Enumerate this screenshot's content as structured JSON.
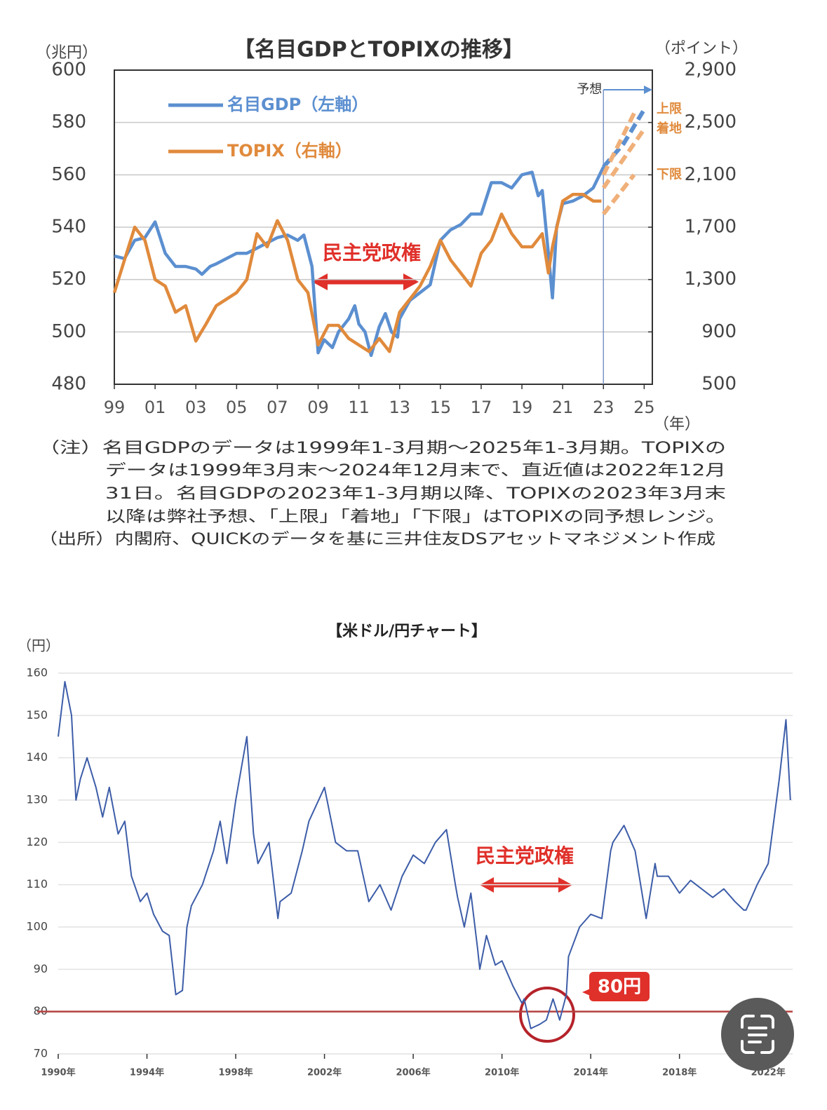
{
  "chart_data": [
    {
      "type": "line",
      "title": "【名目GDPとTOPIXの推移】",
      "y_unit": "（兆円）",
      "y2_unit": "（ポイント）",
      "x_unit": "（年）",
      "xlim": [
        1999,
        2025.4
      ],
      "xticks": [
        {
          "value": 1999,
          "label": "99"
        },
        {
          "value": 2001,
          "label": "01"
        },
        {
          "value": 2003,
          "label": "03"
        },
        {
          "value": 2005,
          "label": "05"
        },
        {
          "value": 2007,
          "label": "07"
        },
        {
          "value": 2009,
          "label": "09"
        },
        {
          "value": 2011,
          "label": "11"
        },
        {
          "value": 2013,
          "label": "13"
        },
        {
          "value": 2015,
          "label": "15"
        },
        {
          "value": 2017,
          "label": "17"
        },
        {
          "value": 2019,
          "label": "19"
        },
        {
          "value": 2021,
          "label": "21"
        },
        {
          "value": 2023,
          "label": "23"
        },
        {
          "value": 2025,
          "label": "25"
        }
      ],
      "ylim": [
        480,
        600
      ],
      "yticks": [
        480,
        500,
        520,
        540,
        560,
        580,
        600
      ],
      "y2lim": [
        500,
        2900
      ],
      "y2ticks": [
        500,
        900,
        {
          "value": 1300,
          "label": "1,300"
        },
        {
          "value": 1700,
          "label": "1,700"
        },
        {
          "value": 2100,
          "label": "2,100"
        },
        {
          "value": 2500,
          "label": "2,500"
        },
        {
          "value": 2900,
          "label": "2,900"
        }
      ],
      "grid": true,
      "series": [
        {
          "name": "名目GDP（左軸）",
          "color": "#5b8fd0",
          "axis": "y",
          "x": [
            1999,
            1999.5,
            2000,
            2000.5,
            2001,
            2001.5,
            2002,
            2002.5,
            2003,
            2003.3,
            2003.7,
            2004,
            2004.5,
            2005,
            2005.5,
            2006,
            2006.5,
            2007,
            2007.5,
            2008,
            2008.3,
            2008.7,
            2009,
            2009.3,
            2009.7,
            2010,
            2010.5,
            2010.8,
            2011,
            2011.3,
            2011.6,
            2012,
            2012.3,
            2012.6,
            2012.9,
            2013,
            2013.5,
            2014,
            2014.5,
            2015,
            2015.5,
            2016,
            2016.5,
            2017,
            2017.5,
            2018,
            2018.5,
            2019,
            2019.5,
            2019.8,
            2020,
            2020.3,
            2020.5,
            2020.7,
            2021,
            2021.5,
            2022,
            2022.5,
            2023
          ],
          "values": [
            529,
            528,
            535,
            536,
            542,
            530,
            525,
            525,
            524,
            522,
            525,
            526,
            528,
            530,
            530,
            532,
            534,
            536,
            537,
            535,
            537,
            525,
            492,
            497,
            494,
            500,
            505,
            510,
            503,
            500,
            491,
            502,
            507,
            500,
            498,
            505,
            512,
            515,
            518,
            535,
            539,
            541,
            545,
            545,
            557,
            557,
            555,
            560,
            561,
            552,
            554,
            530,
            513,
            540,
            549,
            550,
            552,
            555,
            563
          ]
        },
        {
          "name": "TOPIX（右軸）",
          "color": "#e08a3c",
          "axis": "y2",
          "x": [
            1999,
            1999.5,
            2000,
            2000.5,
            2001,
            2001.5,
            2002,
            2002.5,
            2003,
            2003.5,
            2004,
            2004.5,
            2005,
            2005.5,
            2006,
            2006.5,
            2007,
            2007.5,
            2008,
            2008.5,
            2009,
            2009.5,
            2010,
            2010.5,
            2011,
            2011.5,
            2012,
            2012.5,
            2013,
            2013.5,
            2014,
            2014.5,
            2015,
            2015.5,
            2016,
            2016.5,
            2017,
            2017.5,
            2018,
            2018.5,
            2019,
            2019.5,
            2020,
            2020.3,
            2020.5,
            2021,
            2021.5,
            2022,
            2022.5,
            2022.9
          ],
          "values": [
            1200,
            1450,
            1700,
            1600,
            1300,
            1250,
            1050,
            1100,
            830,
            960,
            1100,
            1150,
            1200,
            1300,
            1650,
            1550,
            1750,
            1600,
            1300,
            1200,
            800,
            950,
            950,
            850,
            800,
            750,
            850,
            750,
            1050,
            1150,
            1250,
            1400,
            1600,
            1450,
            1350,
            1250,
            1500,
            1600,
            1800,
            1650,
            1550,
            1550,
            1650,
            1350,
            1550,
            1900,
            1950,
            1950,
            1900,
            1900
          ]
        },
        {
          "color": "#5b8fd0",
          "axis": "y",
          "dashed": true,
          "x": [
            2023,
            2024,
            2025
          ],
          "values": [
            563,
            572,
            585
          ]
        },
        {
          "name": "上限",
          "color": "#f0b07a",
          "axis": "y2",
          "dashed": true,
          "x": [
            2023,
            2024.6
          ],
          "values": [
            2100,
            2600
          ]
        },
        {
          "name": "着地",
          "color": "#f0b07a",
          "axis": "y2",
          "dashed": true,
          "x": [
            2023,
            2025
          ],
          "values": [
            2000,
            2450
          ]
        },
        {
          "name": "下限",
          "color": "#f0b07a",
          "axis": "y2",
          "dashed": true,
          "x": [
            2023,
            2024.5
          ],
          "values": [
            1800,
            2100
          ]
        }
      ],
      "forecast_label": "予想",
      "annotation": "民主党政権",
      "note": [
        "（注）名目GDPのデータは1999年1-3月期～2025年1-3月期。TOPIXの",
        "データは1999年3月末～2024年12月末で、直近値は2022年12月",
        "31日。名目GDPの2023年1-3月期以降、TOPIXの2023年3月末",
        "以降は弊社予想、「上限」「着地」「下限」はTOPIXの同予想レンジ。",
        "（出所）内閣府、QUICKのデータを基に三井住友DSアセットマネジメント作成"
      ]
    },
    {
      "type": "line",
      "title": "【米ドル/円チャート】",
      "y_unit": "（円）",
      "xlim": [
        1990,
        2023.1
      ],
      "xticks": [
        {
          "value": 1990,
          "label": "1990年"
        },
        {
          "value": 1994,
          "label": "1994年"
        },
        {
          "value": 1998,
          "label": "1998年"
        },
        {
          "value": 2002,
          "label": "2002年"
        },
        {
          "value": 2006,
          "label": "2006年"
        },
        {
          "value": 2010,
          "label": "2010年"
        },
        {
          "value": 2014,
          "label": "2014年"
        },
        {
          "value": 2018,
          "label": "2018年"
        },
        {
          "value": 2022,
          "label": "2022年"
        }
      ],
      "ylim": [
        70,
        160
      ],
      "yticks": [
        70,
        80,
        90,
        100,
        110,
        120,
        130,
        140,
        150,
        160
      ],
      "grid": true,
      "color": "#3d5da8",
      "x": [
        1990,
        1990.3,
        1990.6,
        1990.8,
        1991,
        1991.3,
        1991.7,
        1992,
        1992.3,
        1992.7,
        1993,
        1993.3,
        1993.7,
        1994,
        1994.3,
        1994.7,
        1995,
        1995.3,
        1995.6,
        1995.8,
        1996,
        1996.5,
        1997,
        1997.3,
        1997.6,
        1998,
        1998.5,
        1998.8,
        1999,
        1999.5,
        1999.9,
        2000,
        2000.5,
        2001,
        2001.3,
        2002,
        2002.5,
        2003,
        2003.5,
        2004,
        2004.5,
        2005,
        2005.5,
        2006,
        2006.5,
        2007,
        2007.5,
        2007.9,
        2008,
        2008.3,
        2008.6,
        2008.9,
        2009,
        2009.3,
        2009.7,
        2010,
        2010.5,
        2010.9,
        2011,
        2011.3,
        2011.7,
        2012,
        2012.3,
        2012.6,
        2012.9,
        2013,
        2013.5,
        2014,
        2014.5,
        2014.9,
        2015,
        2015.5,
        2016,
        2016.5,
        2016.9,
        2017,
        2017.5,
        2018,
        2018.5,
        2019,
        2019.5,
        2020,
        2020.5,
        2020.9,
        2021,
        2021.5,
        2022,
        2022.5,
        2022.8,
        2023
      ],
      "values": [
        145,
        158,
        150,
        130,
        135,
        140,
        133,
        126,
        133,
        122,
        125,
        112,
        106,
        108,
        103,
        99,
        98,
        84,
        85,
        100,
        105,
        110,
        118,
        125,
        115,
        130,
        145,
        122,
        115,
        120,
        102,
        106,
        108,
        118,
        125,
        133,
        120,
        118,
        118,
        106,
        110,
        104,
        112,
        117,
        115,
        120,
        123,
        110,
        107,
        100,
        108,
        95,
        90,
        98,
        91,
        92,
        86,
        82,
        83,
        76,
        77,
        78,
        83,
        78,
        84,
        93,
        100,
        103,
        102,
        118,
        120,
        124,
        118,
        102,
        115,
        112,
        112,
        108,
        111,
        109,
        107,
        109,
        106,
        104,
        104,
        110,
        115,
        135,
        149,
        130
      ],
      "reference_line": {
        "value": 80,
        "color": "#b5423f"
      },
      "annotation": "民主党政権",
      "callout": "80円"
    }
  ]
}
